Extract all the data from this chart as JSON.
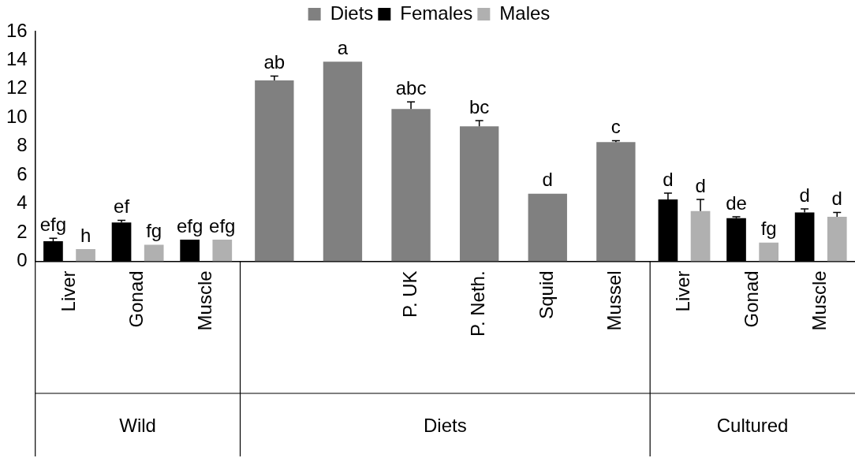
{
  "chart_data": {
    "type": "bar",
    "categories": [
      "Liver",
      "Gonad",
      "Muscle",
      null,
      null,
      "P. UK",
      "P. Neth.",
      "Squid",
      "Mussel",
      "Liver",
      "Gonad",
      "Muscle"
    ],
    "series": [
      {
        "name": "Diets",
        "color": "#808080",
        "values": [
          null,
          null,
          null,
          12.6,
          13.9,
          10.6,
          9.4,
          4.7,
          8.3,
          null,
          null,
          null
        ],
        "errors": [
          null,
          null,
          null,
          0.3,
          null,
          0.5,
          0.4,
          null,
          0.1,
          null,
          null,
          null
        ],
        "value_labels": [
          null,
          null,
          null,
          "ab",
          "a",
          "abc",
          "bc",
          "d",
          "c",
          null,
          null,
          null
        ]
      },
      {
        "name": "Females",
        "color": "#000000",
        "values": [
          1.4,
          2.7,
          1.5,
          null,
          null,
          null,
          null,
          null,
          null,
          4.3,
          3.0,
          3.4
        ],
        "errors": [
          0.2,
          0.15,
          null,
          null,
          null,
          null,
          null,
          null,
          null,
          0.45,
          0.1,
          0.25
        ],
        "value_labels": [
          "efg",
          "ef",
          "efg",
          null,
          null,
          null,
          null,
          null,
          null,
          "d",
          "de",
          "d"
        ]
      },
      {
        "name": "Males",
        "color": "#b0b0b0",
        "values": [
          0.85,
          1.15,
          1.5,
          null,
          null,
          null,
          null,
          null,
          null,
          3.5,
          1.3,
          3.1
        ],
        "errors": [
          null,
          null,
          null,
          null,
          null,
          null,
          null,
          null,
          null,
          0.8,
          null,
          0.3
        ],
        "value_labels": [
          "h",
          "fg",
          "efg",
          null,
          null,
          null,
          null,
          null,
          null,
          "d",
          "fg",
          "d"
        ]
      }
    ],
    "ylim": [
      0,
      16
    ],
    "yticks": [
      0,
      2,
      4,
      6,
      8,
      10,
      12,
      14,
      16
    ],
    "grid": false,
    "legend": "top",
    "annotations": [
      "Wild",
      "Diets",
      "Cultured"
    ]
  }
}
